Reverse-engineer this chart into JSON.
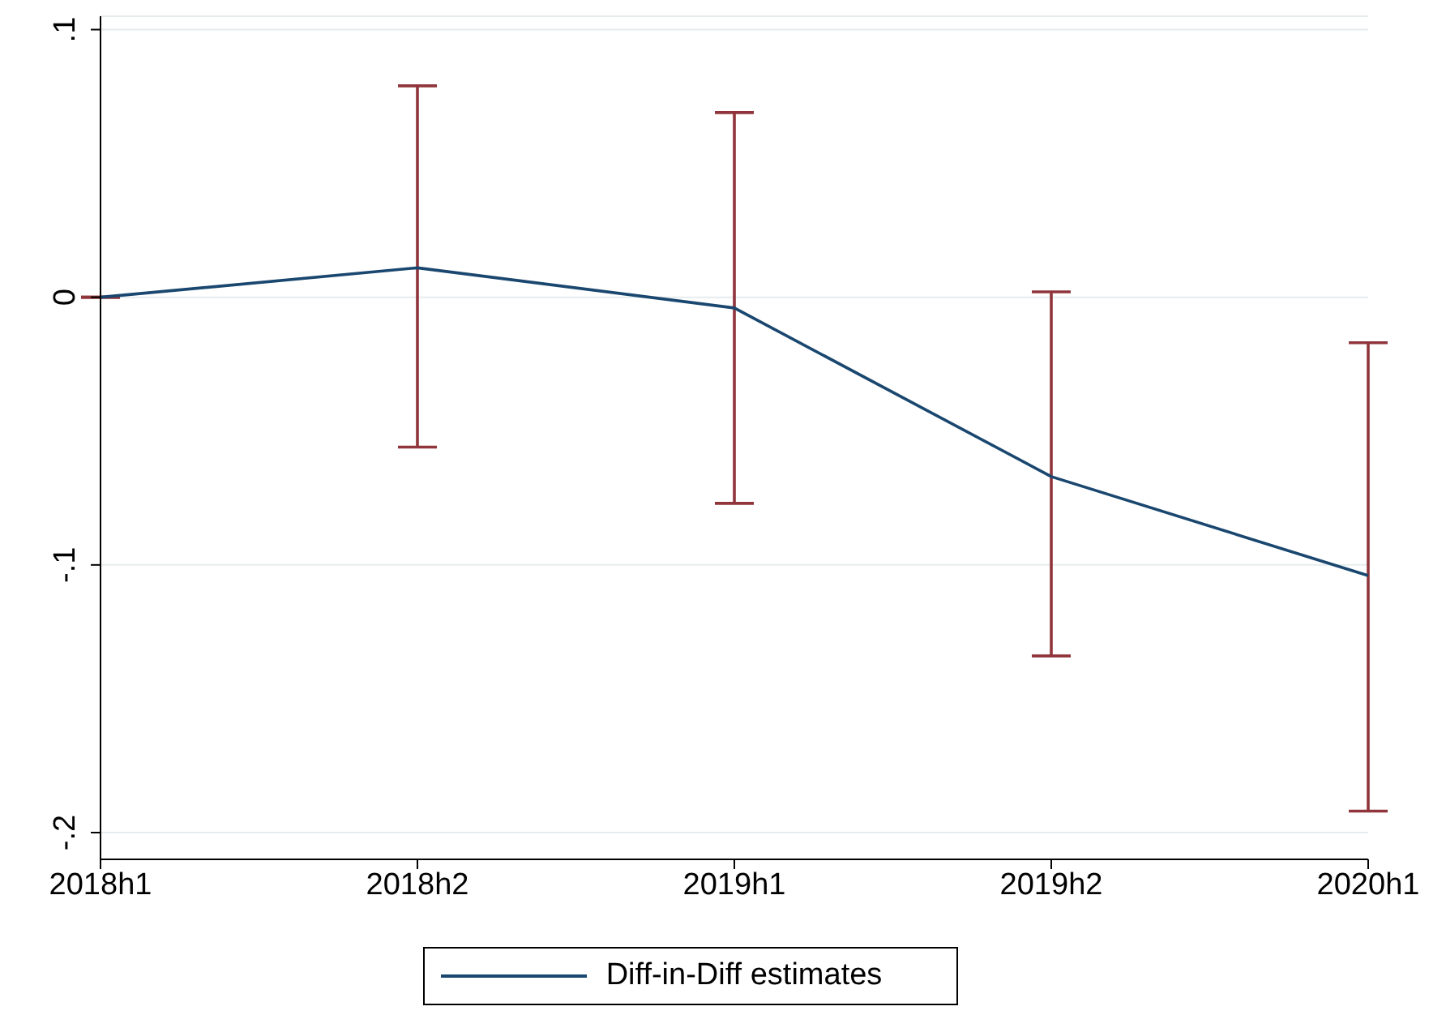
{
  "chart_data": {
    "type": "line",
    "categories": [
      "2018h1",
      "2018h2",
      "2019h1",
      "2019h2",
      "2020h1"
    ],
    "series": [
      {
        "name": "Diff-in-Diff estimates",
        "color": "#1a476f",
        "values": [
          0,
          0.011,
          -0.004,
          -0.067,
          -0.104
        ],
        "errors": [
          [
            0,
            0
          ],
          [
            -0.056,
            0.079
          ],
          [
            -0.077,
            0.069
          ],
          [
            -0.134,
            0.002
          ],
          [
            -0.192,
            -0.017
          ]
        ]
      }
    ],
    "ylim": [
      -0.21,
      0.105
    ],
    "yticks": [
      {
        "value": -0.2,
        "label": "-.2"
      },
      {
        "value": -0.1,
        "label": "-.1"
      },
      {
        "value": 0,
        "label": "0"
      },
      {
        "value": 0.1,
        "label": ".1"
      }
    ],
    "grid": "y",
    "legend": "bottom",
    "marker": "none",
    "line_style": "solid"
  }
}
